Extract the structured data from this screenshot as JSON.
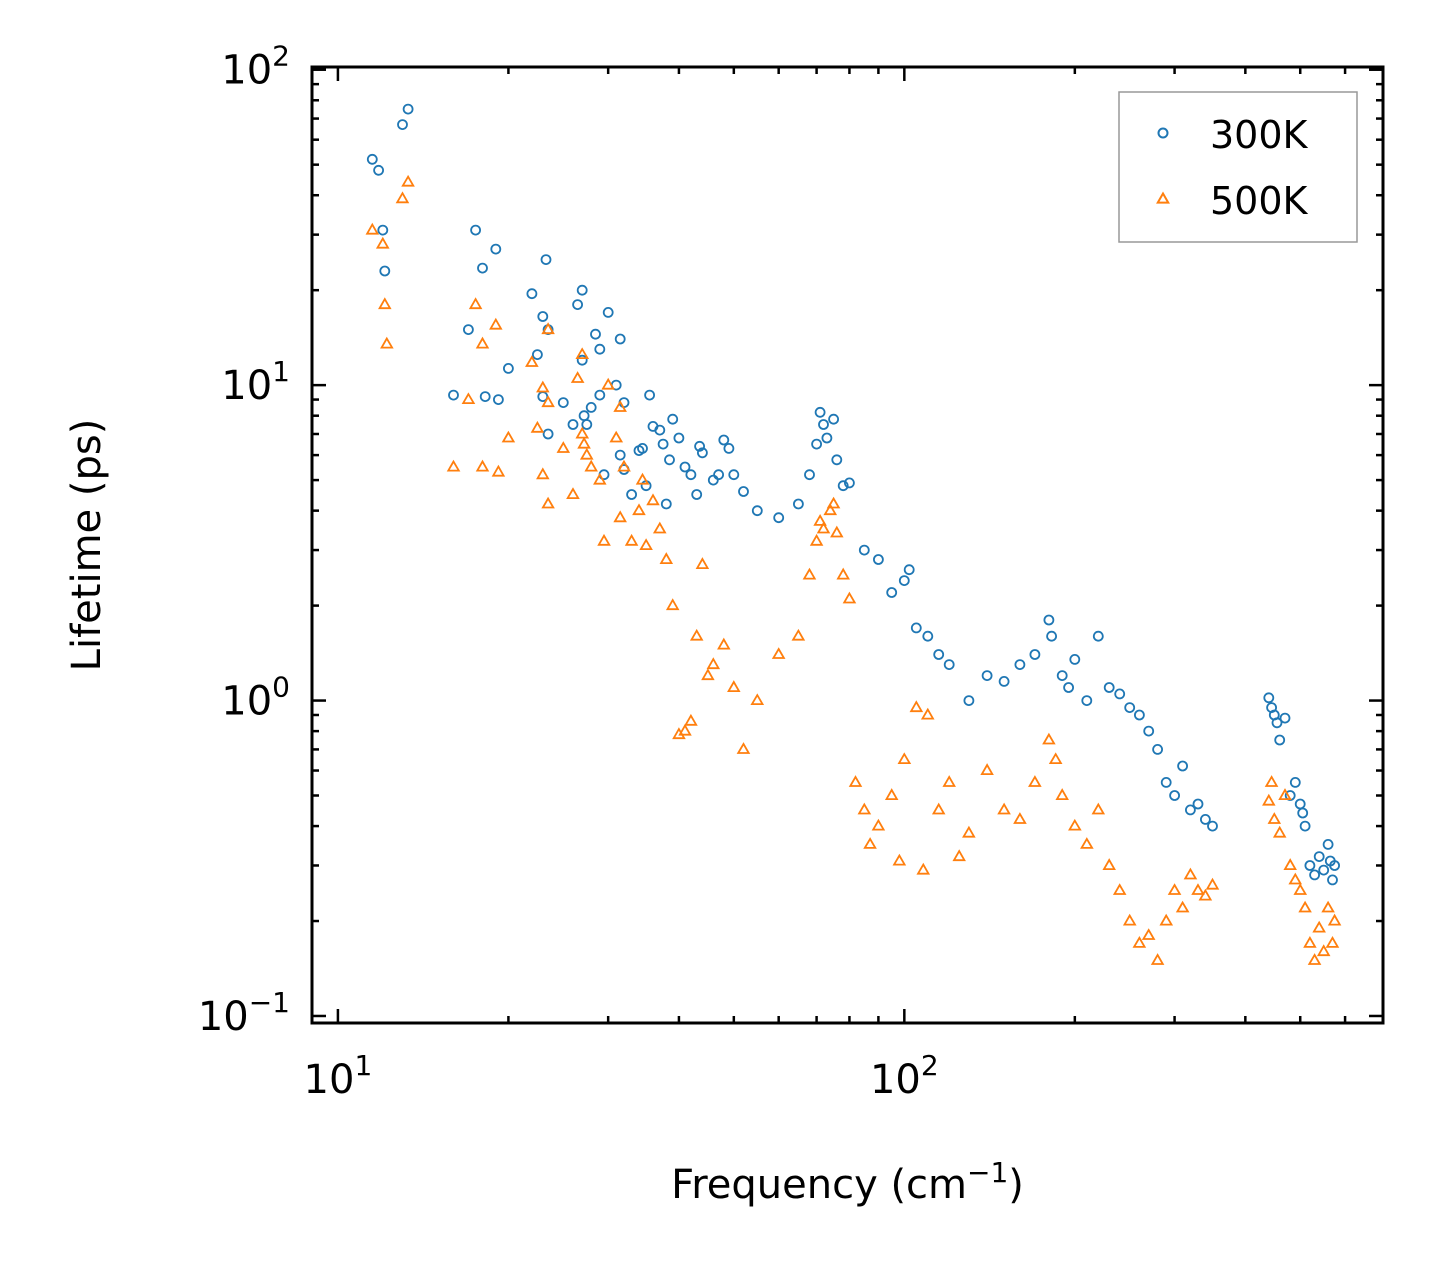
{
  "chart_data": {
    "type": "scatter",
    "title": "",
    "xlabel": "Frequency (cm",
    "xlabel_sup": "−1",
    "xlabel_end": ")",
    "ylabel": "Lifetime (ps)",
    "xscale": "log",
    "yscale": "log",
    "xlim": [
      9,
      700
    ],
    "ylim": [
      0.095,
      102
    ],
    "x_ticks": [
      {
        "base": "10",
        "exp": "1",
        "value": 10
      },
      {
        "base": "10",
        "exp": "2",
        "value": 100
      }
    ],
    "y_ticks": [
      {
        "base": "10",
        "exp": "−1",
        "value": 0.1
      },
      {
        "base": "10",
        "exp": "0",
        "value": 1
      },
      {
        "base": "10",
        "exp": "1",
        "value": 10
      },
      {
        "base": "10",
        "exp": "2",
        "value": 100
      }
    ],
    "legend_position": "top-right",
    "series": [
      {
        "name": "300K",
        "marker": "circle",
        "color": "#1f77b4",
        "points": [
          [
            11.5,
            52
          ],
          [
            11.8,
            48
          ],
          [
            12,
            31
          ],
          [
            12.1,
            23
          ],
          [
            13,
            67
          ],
          [
            13.3,
            75
          ],
          [
            16,
            9.3
          ],
          [
            17,
            15
          ],
          [
            17.5,
            31
          ],
          [
            18,
            23.5
          ],
          [
            18.2,
            9.2
          ],
          [
            19,
            27
          ],
          [
            19.2,
            9
          ],
          [
            20,
            11.3
          ],
          [
            22,
            19.5
          ],
          [
            22.5,
            12.5
          ],
          [
            23,
            16.5
          ],
          [
            23.5,
            15
          ],
          [
            23.3,
            25
          ],
          [
            23,
            9.2
          ],
          [
            23.5,
            7
          ],
          [
            25,
            8.8
          ],
          [
            26,
            7.5
          ],
          [
            26.5,
            18
          ],
          [
            27,
            20
          ],
          [
            27,
            12
          ],
          [
            27.2,
            8
          ],
          [
            27.5,
            7.5
          ],
          [
            28,
            8.5
          ],
          [
            28.5,
            14.5
          ],
          [
            29,
            9.3
          ],
          [
            29,
            13
          ],
          [
            29.5,
            5.2
          ],
          [
            30,
            17
          ],
          [
            31,
            10
          ],
          [
            31.5,
            14
          ],
          [
            31.5,
            6
          ],
          [
            32,
            8.8
          ],
          [
            32,
            5.4
          ],
          [
            33,
            4.5
          ],
          [
            34,
            6.2
          ],
          [
            34.5,
            6.3
          ],
          [
            35,
            4.8
          ],
          [
            35.5,
            9.3
          ],
          [
            36,
            7.4
          ],
          [
            37,
            7.2
          ],
          [
            37.5,
            6.5
          ],
          [
            38,
            4.2
          ],
          [
            38.5,
            5.8
          ],
          [
            39,
            7.8
          ],
          [
            40,
            6.8
          ],
          [
            41,
            5.5
          ],
          [
            42,
            5.2
          ],
          [
            43,
            4.5
          ],
          [
            43.5,
            6.4
          ],
          [
            44,
            6.1
          ],
          [
            46,
            5.0
          ],
          [
            47,
            5.2
          ],
          [
            48,
            6.7
          ],
          [
            49,
            6.3
          ],
          [
            50,
            5.2
          ],
          [
            52,
            4.6
          ],
          [
            55,
            4.0
          ],
          [
            60,
            3.8
          ],
          [
            65,
            4.2
          ],
          [
            68,
            5.2
          ],
          [
            70,
            6.5
          ],
          [
            71,
            8.2
          ],
          [
            72,
            7.5
          ],
          [
            73,
            6.8
          ],
          [
            75,
            7.8
          ],
          [
            76,
            5.8
          ],
          [
            78,
            4.8
          ],
          [
            80,
            4.9
          ],
          [
            85,
            3.0
          ],
          [
            90,
            2.8
          ],
          [
            95,
            2.2
          ],
          [
            100,
            2.4
          ],
          [
            102,
            2.6
          ],
          [
            105,
            1.7
          ],
          [
            110,
            1.6
          ],
          [
            115,
            1.4
          ],
          [
            120,
            1.3
          ],
          [
            130,
            1.0
          ],
          [
            140,
            1.2
          ],
          [
            150,
            1.15
          ],
          [
            160,
            1.3
          ],
          [
            170,
            1.4
          ],
          [
            180,
            1.8
          ],
          [
            182,
            1.6
          ],
          [
            190,
            1.2
          ],
          [
            195,
            1.1
          ],
          [
            200,
            1.35
          ],
          [
            210,
            1.0
          ],
          [
            220,
            1.6
          ],
          [
            230,
            1.1
          ],
          [
            240,
            1.05
          ],
          [
            250,
            0.95
          ],
          [
            260,
            0.9
          ],
          [
            270,
            0.8
          ],
          [
            280,
            0.7
          ],
          [
            290,
            0.55
          ],
          [
            300,
            0.5
          ],
          [
            310,
            0.62
          ],
          [
            320,
            0.45
          ],
          [
            330,
            0.47
          ],
          [
            340,
            0.42
          ],
          [
            350,
            0.4
          ],
          [
            440,
            1.02
          ],
          [
            445,
            0.95
          ],
          [
            450,
            0.9
          ],
          [
            455,
            0.85
          ],
          [
            460,
            0.75
          ],
          [
            470,
            0.88
          ],
          [
            480,
            0.5
          ],
          [
            490,
            0.55
          ],
          [
            500,
            0.47
          ],
          [
            505,
            0.44
          ],
          [
            510,
            0.4
          ],
          [
            520,
            0.3
          ],
          [
            530,
            0.28
          ],
          [
            540,
            0.32
          ],
          [
            550,
            0.29
          ],
          [
            560,
            0.35
          ],
          [
            565,
            0.31
          ],
          [
            570,
            0.27
          ],
          [
            575,
            0.3
          ]
        ]
      },
      {
        "name": "500K",
        "marker": "triangle",
        "color": "#ff7f0e",
        "points": [
          [
            11.5,
            31
          ],
          [
            12,
            28
          ],
          [
            12.1,
            18
          ],
          [
            12.2,
            13.5
          ],
          [
            13,
            39
          ],
          [
            13.3,
            44
          ],
          [
            16,
            5.5
          ],
          [
            17,
            9
          ],
          [
            17.5,
            18
          ],
          [
            18,
            13.5
          ],
          [
            18,
            5.5
          ],
          [
            19,
            15.5
          ],
          [
            19.2,
            5.3
          ],
          [
            20,
            6.8
          ],
          [
            22,
            11.8
          ],
          [
            22.5,
            7.3
          ],
          [
            23,
            9.8
          ],
          [
            23.5,
            8.8
          ],
          [
            23.5,
            15
          ],
          [
            23,
            5.2
          ],
          [
            23.5,
            4.2
          ],
          [
            25,
            6.3
          ],
          [
            26,
            4.5
          ],
          [
            26.5,
            10.5
          ],
          [
            27,
            12.5
          ],
          [
            27,
            7
          ],
          [
            27.2,
            6.5
          ],
          [
            27.5,
            6
          ],
          [
            28,
            5.5
          ],
          [
            29,
            5
          ],
          [
            29.5,
            3.2
          ],
          [
            30,
            10
          ],
          [
            31,
            6.8
          ],
          [
            31.5,
            8.5
          ],
          [
            31.5,
            3.8
          ],
          [
            32,
            5.5
          ],
          [
            33,
            3.2
          ],
          [
            34,
            4
          ],
          [
            34.5,
            5
          ],
          [
            35,
            3.1
          ],
          [
            36,
            4.3
          ],
          [
            37,
            3.5
          ],
          [
            38,
            2.8
          ],
          [
            39,
            2
          ],
          [
            40,
            0.78
          ],
          [
            41,
            0.8
          ],
          [
            42,
            0.86
          ],
          [
            43,
            1.6
          ],
          [
            44,
            2.7
          ],
          [
            45,
            1.2
          ],
          [
            46,
            1.3
          ],
          [
            48,
            1.5
          ],
          [
            50,
            1.1
          ],
          [
            52,
            0.7
          ],
          [
            55,
            1.0
          ],
          [
            60,
            1.4
          ],
          [
            65,
            1.6
          ],
          [
            68,
            2.5
          ],
          [
            70,
            3.2
          ],
          [
            71,
            3.7
          ],
          [
            72,
            3.5
          ],
          [
            74,
            4.0
          ],
          [
            75,
            4.2
          ],
          [
            76,
            3.4
          ],
          [
            78,
            2.5
          ],
          [
            80,
            2.1
          ],
          [
            82,
            0.55
          ],
          [
            85,
            0.45
          ],
          [
            87,
            0.35
          ],
          [
            90,
            0.4
          ],
          [
            95,
            0.5
          ],
          [
            98,
            0.31
          ],
          [
            100,
            0.65
          ],
          [
            105,
            0.95
          ],
          [
            108,
            0.29
          ],
          [
            110,
            0.9
          ],
          [
            115,
            0.45
          ],
          [
            120,
            0.55
          ],
          [
            125,
            0.32
          ],
          [
            130,
            0.38
          ],
          [
            140,
            0.6
          ],
          [
            150,
            0.45
          ],
          [
            160,
            0.42
          ],
          [
            170,
            0.55
          ],
          [
            180,
            0.75
          ],
          [
            185,
            0.65
          ],
          [
            190,
            0.5
          ],
          [
            200,
            0.4
          ],
          [
            210,
            0.35
          ],
          [
            220,
            0.45
          ],
          [
            230,
            0.3
          ],
          [
            240,
            0.25
          ],
          [
            250,
            0.2
          ],
          [
            260,
            0.17
          ],
          [
            270,
            0.18
          ],
          [
            280,
            0.15
          ],
          [
            290,
            0.2
          ],
          [
            300,
            0.25
          ],
          [
            310,
            0.22
          ],
          [
            320,
            0.28
          ],
          [
            330,
            0.25
          ],
          [
            340,
            0.24
          ],
          [
            350,
            0.26
          ],
          [
            440,
            0.48
          ],
          [
            445,
            0.55
          ],
          [
            450,
            0.42
          ],
          [
            460,
            0.38
          ],
          [
            470,
            0.5
          ],
          [
            480,
            0.3
          ],
          [
            490,
            0.27
          ],
          [
            500,
            0.25
          ],
          [
            510,
            0.22
          ],
          [
            520,
            0.17
          ],
          [
            530,
            0.15
          ],
          [
            540,
            0.19
          ],
          [
            550,
            0.16
          ],
          [
            560,
            0.22
          ],
          [
            570,
            0.17
          ],
          [
            575,
            0.2
          ]
        ]
      }
    ]
  }
}
